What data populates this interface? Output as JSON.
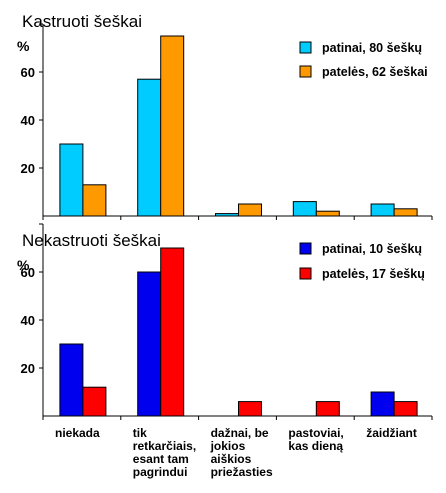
{
  "colors": {
    "patinai_kastruoti": "#00CCFF",
    "pateles_kastruoti": "#FF9900",
    "patinai_nekastruoti": "#0000EE",
    "pateles_nekastruoti": "#FF0000",
    "axis": "#000000"
  },
  "chart_data": [
    {
      "type": "bar",
      "title": "Kastruoti šeškai",
      "ylabel": "%",
      "ylim": [
        0,
        80
      ],
      "yticks": [
        20,
        40,
        60
      ],
      "legend_position": "top-right",
      "categories": [
        "niekada",
        "tik retkarčiais, esant tam pagrindui",
        "dažnai, be jokios aiškios priežasties",
        "pastoviai, kas dieną",
        "žaidžiant"
      ],
      "series": [
        {
          "name": "patinai, 80 šeškų",
          "color": "#00CCFF",
          "values": [
            30,
            57,
            1,
            6,
            5
          ]
        },
        {
          "name": "patelės, 62 šeškai",
          "color": "#FF9900",
          "values": [
            13,
            75,
            5,
            2,
            3
          ]
        }
      ]
    },
    {
      "type": "bar",
      "title": "Nekastruoti šeškai",
      "ylabel": "%",
      "ylim": [
        0,
        80
      ],
      "yticks": [
        20,
        40,
        60
      ],
      "legend_position": "top-right",
      "categories": [
        "niekada",
        "tik retkarčiais, esant tam pagrindui",
        "dažnai, be jokios aiškios priežasties",
        "pastoviai, kas dieną",
        "žaidžiant"
      ],
      "series": [
        {
          "name": "patinai, 10 šeškų",
          "color": "#0000EE",
          "values": [
            30,
            60,
            0,
            0,
            10
          ]
        },
        {
          "name": "patelės, 17 šeškų",
          "color": "#FF0000",
          "values": [
            12,
            70,
            6,
            6,
            6
          ]
        }
      ]
    }
  ],
  "category_labels": [
    [
      "niekada"
    ],
    [
      "tik",
      "retkarčiais,",
      "esant tam",
      "pagrindui"
    ],
    [
      "dažnai, be",
      "jokios",
      "aiškios",
      "priežasties"
    ],
    [
      "pastoviai,",
      "kas dieną"
    ],
    [
      "žaidžiant"
    ]
  ]
}
